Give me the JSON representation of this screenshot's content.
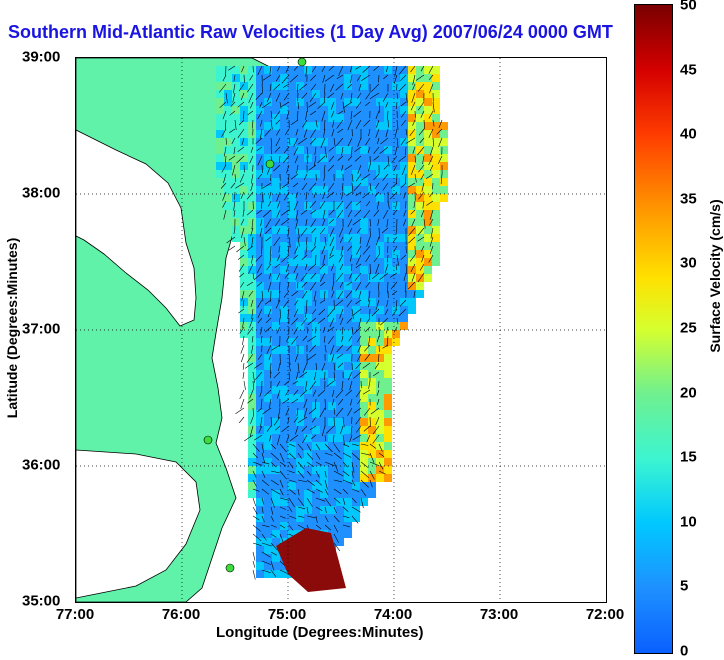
{
  "title": "Southern Mid-Atlantic Raw Velocities (1 Day Avg) 2007/06/24 0000 GMT",
  "x_axis": {
    "label": "Longitude (Degrees:Minutes)",
    "ticks": [
      "77:00",
      "76:00",
      "75:00",
      "74:00",
      "73:00",
      "72:00"
    ]
  },
  "y_axis": {
    "label": "Latitude (Degrees:Minutes)",
    "ticks": [
      "39:00",
      "38:00",
      "37:00",
      "36:00",
      "35:00"
    ]
  },
  "colorbar": {
    "label": "Surface Velocity (cm/s)",
    "ticks": [
      "50",
      "45",
      "40",
      "35",
      "30",
      "25",
      "20",
      "15",
      "10",
      "5",
      "0"
    ]
  },
  "colors": {
    "title": "#1a14e0",
    "land": "#5ff2a8",
    "water": "#ffffff"
  }
}
